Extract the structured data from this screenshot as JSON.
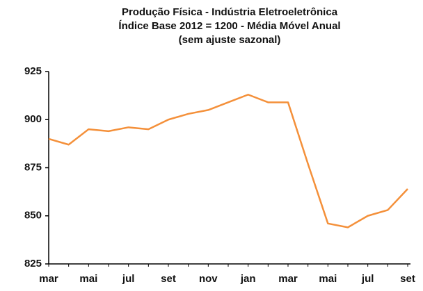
{
  "chart_data": {
    "type": "line",
    "title": [
      "Produção Física - Indústria Eletroeletrônica",
      "Índice Base 2012 = 1200 - Média Móvel Anual",
      "(sem ajuste sazonal)"
    ],
    "categories": [
      "mar",
      null,
      "mai",
      null,
      "jul",
      null,
      "set",
      null,
      "nov",
      null,
      "jan",
      null,
      "mar",
      null,
      "mai",
      null,
      "jul",
      null,
      "set"
    ],
    "series": [
      {
        "color": "#f4903a",
        "values": [
          890,
          887,
          895,
          894,
          896,
          895,
          900,
          903,
          905,
          909,
          913,
          909,
          909,
          877,
          846,
          844,
          850,
          853,
          864
        ]
      }
    ],
    "ylim": [
      825,
      925
    ],
    "yticks": [
      825,
      850,
      875,
      900,
      925
    ],
    "grid": false
  }
}
